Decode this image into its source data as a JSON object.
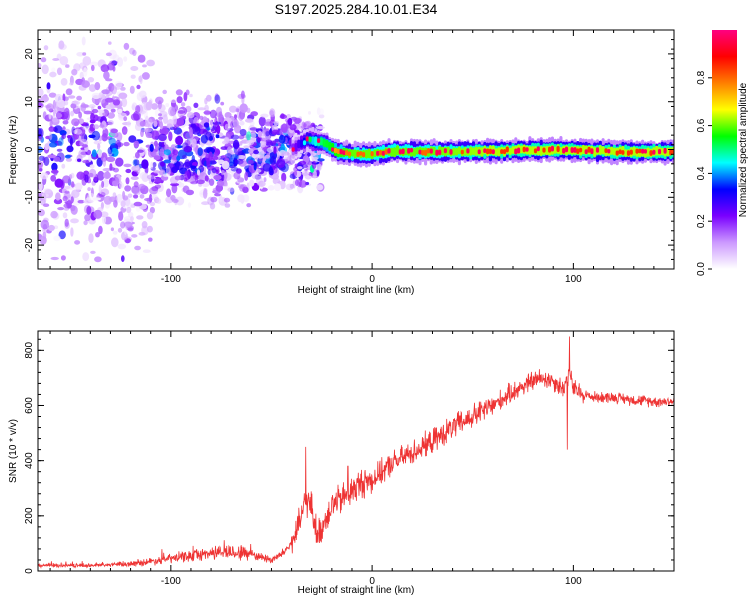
{
  "title": "S197.2025.284.10.01.E34",
  "chart_data": [
    {
      "type": "heatmap",
      "xlabel": "Height of straight line (km)",
      "ylabel": "Frequency (Hz)",
      "xlim": [
        -166,
        150
      ],
      "ylim": [
        -25,
        25
      ],
      "xticks": [
        -100,
        0,
        100
      ],
      "yticks": [
        -20,
        -10,
        0,
        10,
        20
      ],
      "colorbar": {
        "label": "Normalized spectral amplitude",
        "range": [
          0,
          1
        ],
        "ticks": [
          "0.0",
          "0.2",
          "0.4",
          "0.6",
          "0.8"
        ],
        "colors": [
          "#ffffff",
          "#cc99ff",
          "#7a00ff",
          "#0000ff",
          "#00ffff",
          "#00ff00",
          "#ffff00",
          "#ff7f00",
          "#ff0000",
          "#ff0080"
        ]
      },
      "noise_region": {
        "x": [
          -166,
          -35
        ],
        "amplitude_range": [
          0.02,
          0.35
        ]
      },
      "signal_ridge": [
        {
          "x": -40,
          "y": 0.2,
          "amplitude": 0.3
        },
        {
          "x": -33,
          "y": 2.0,
          "amplitude": 0.55
        },
        {
          "x": -25,
          "y": 1.5,
          "amplitude": 0.8
        },
        {
          "x": -18,
          "y": -0.5,
          "amplitude": 0.85
        },
        {
          "x": -10,
          "y": -1.0,
          "amplitude": 0.9
        },
        {
          "x": 0,
          "y": -1.0,
          "amplitude": 0.9
        },
        {
          "x": 10,
          "y": -0.3,
          "amplitude": 0.9
        },
        {
          "x": 30,
          "y": -0.5,
          "amplitude": 0.9
        },
        {
          "x": 60,
          "y": -0.3,
          "amplitude": 0.95
        },
        {
          "x": 90,
          "y": 0.0,
          "amplitude": 0.95
        },
        {
          "x": 120,
          "y": -0.5,
          "amplitude": 0.95
        },
        {
          "x": 150,
          "y": -0.5,
          "amplitude": 0.95
        }
      ]
    },
    {
      "type": "line",
      "xlabel": "Height of straight line (km)",
      "ylabel": "SNR (10 * v/v)",
      "xlim": [
        -166,
        150
      ],
      "ylim": [
        0,
        870
      ],
      "xticks": [
        -100,
        0,
        100
      ],
      "yticks": [
        0,
        200,
        400,
        600,
        800
      ],
      "color": "#ee3333",
      "series": [
        {
          "name": "SNR",
          "x": [
            -166,
            -140,
            -120,
            -105,
            -90,
            -75,
            -62,
            -50,
            -45,
            -40,
            -36,
            -33,
            -30,
            -27,
            -25,
            -20,
            -15,
            -10,
            -5,
            0,
            10,
            20,
            30,
            40,
            50,
            60,
            70,
            80,
            85,
            90,
            95,
            98,
            100,
            105,
            110,
            120,
            130,
            140,
            150
          ],
          "y": [
            20,
            20,
            25,
            40,
            55,
            70,
            65,
            40,
            60,
            100,
            170,
            260,
            230,
            120,
            160,
            240,
            260,
            290,
            320,
            330,
            390,
            430,
            470,
            520,
            560,
            600,
            650,
            690,
            700,
            690,
            660,
            720,
            660,
            640,
            630,
            630,
            620,
            615,
            615
          ]
        }
      ],
      "peaks": [
        {
          "x": -33,
          "y": 450
        },
        {
          "x": -12,
          "y": 380
        },
        {
          "x": 98,
          "y": 850
        },
        {
          "x": 97,
          "y": 440
        }
      ]
    }
  ]
}
